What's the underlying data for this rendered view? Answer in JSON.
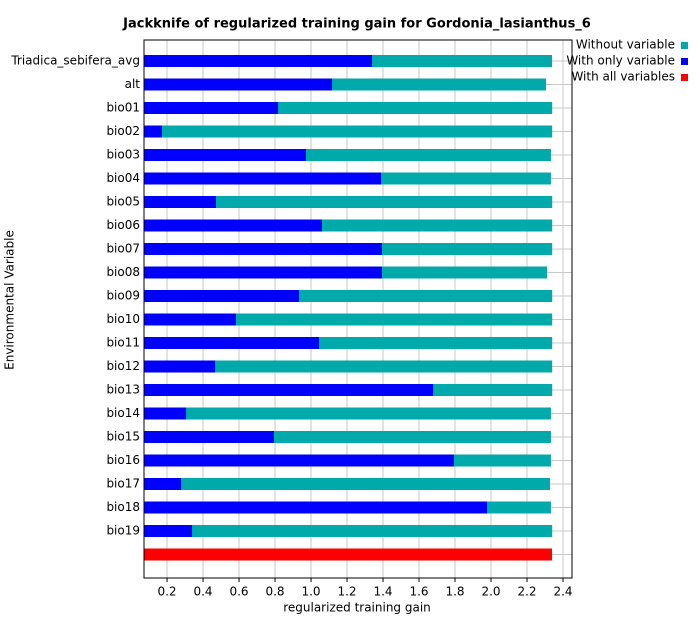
{
  "chart_data": {
    "type": "bar",
    "orientation": "horizontal",
    "title": "Jackknife of regularized training gain for Gordonia_lasianthus_6",
    "x_label": "regularized training gain",
    "y_label": "Environmental Variable",
    "categories": [
      "Triadica_sebifera_avg",
      "alt",
      "bio01",
      "bio02",
      "bio03",
      "bio04",
      "bio05",
      "bio06",
      "bio07",
      "bio08",
      "bio09",
      "bio10",
      "bio11",
      "bio12",
      "bio13",
      "bio14",
      "bio15",
      "bio16",
      "bio17",
      "bio18",
      "bio19",
      null
    ],
    "series": [
      {
        "name": "Without variable",
        "color": "#00aaaa",
        "values": [
          2.339,
          2.306,
          2.34,
          2.34,
          2.333,
          2.333,
          2.34,
          2.34,
          2.34,
          2.311,
          2.34,
          2.34,
          2.34,
          2.34,
          2.34,
          2.333,
          2.333,
          2.333,
          2.328,
          2.333,
          2.34,
          null
        ]
      },
      {
        "name": "With only variable",
        "color": "#0000ff",
        "values": [
          1.339,
          1.117,
          0.817,
          0.172,
          0.972,
          1.389,
          0.472,
          1.061,
          1.394,
          1.394,
          0.933,
          0.583,
          1.044,
          0.467,
          1.678,
          0.306,
          0.794,
          1.794,
          0.278,
          1.978,
          0.339,
          null
        ]
      },
      {
        "name": "With all variables",
        "color": "#ff0000",
        "values": [
          null,
          null,
          null,
          null,
          null,
          null,
          null,
          null,
          null,
          null,
          null,
          null,
          null,
          null,
          null,
          null,
          null,
          null,
          null,
          null,
          null,
          2.339
        ]
      }
    ],
    "xlim": [
      0.072,
      2.45
    ],
    "xticks": [
      0.2,
      0.4,
      0.6,
      0.8,
      {
        "value": 1,
        "label": "1.0"
      },
      1.2,
      1.4,
      1.6,
      1.8,
      {
        "value": 2,
        "label": "2.0"
      },
      2.2,
      2.4
    ],
    "grid": true,
    "legend": "top-right"
  }
}
